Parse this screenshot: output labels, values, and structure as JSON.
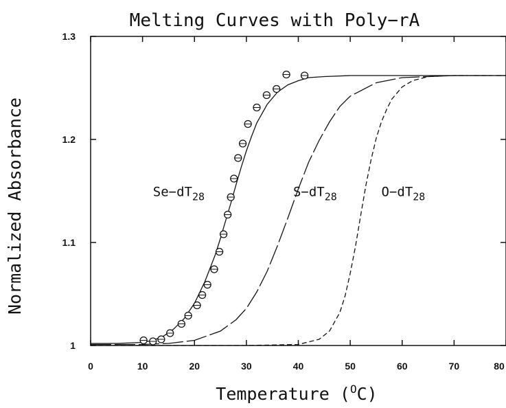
{
  "chart_data": {
    "type": "line",
    "title": "Melting Curves with Poly−rA",
    "xlabel": "Temperature",
    "xlabel_unit_sup": "O",
    "xlabel_unit_after": "C",
    "ylabel": "Normalized Absorbance",
    "xlim": [
      0,
      80
    ],
    "ylim": [
      1.0,
      1.3
    ],
    "x_ticks": [
      0,
      10,
      20,
      30,
      40,
      50,
      60,
      70,
      80
    ],
    "y_ticks": [
      {
        "value": 1.0,
        "label": "1"
      },
      {
        "value": 1.1,
        "label": "1.1"
      },
      {
        "value": 1.2,
        "label": "1.2"
      },
      {
        "value": 1.3,
        "label": "1.3"
      }
    ],
    "grid": false,
    "series": [
      {
        "name_main": "Se−dT",
        "name_sub": "28",
        "style": "solid",
        "x": [
          0,
          5,
          10,
          12,
          14,
          16,
          18,
          20,
          22,
          24,
          25,
          26,
          27,
          28,
          29,
          30,
          31,
          32,
          34,
          36,
          38,
          40,
          42,
          45,
          50,
          60,
          70,
          80
        ],
        "y": [
          1.002,
          1.002,
          1.003,
          1.005,
          1.009,
          1.016,
          1.026,
          1.041,
          1.062,
          1.088,
          1.104,
          1.121,
          1.138,
          1.156,
          1.173,
          1.189,
          1.203,
          1.216,
          1.234,
          1.246,
          1.253,
          1.257,
          1.26,
          1.261,
          1.262,
          1.262,
          1.262,
          1.262
        ],
        "label_at": {
          "x": 12,
          "y": 1.145
        }
      },
      {
        "name_main": "S−dT",
        "name_sub": "28",
        "style": "dashed-long",
        "x": [
          0,
          10,
          15,
          20,
          25,
          28,
          30,
          32,
          34,
          36,
          38,
          40,
          42,
          44,
          46,
          48,
          50,
          55,
          60,
          65,
          70,
          80
        ],
        "y": [
          1.001,
          1.001,
          1.002,
          1.005,
          1.014,
          1.025,
          1.036,
          1.052,
          1.072,
          1.097,
          1.124,
          1.152,
          1.178,
          1.199,
          1.217,
          1.232,
          1.242,
          1.255,
          1.26,
          1.261,
          1.262,
          1.262
        ],
        "label_at": {
          "x": 39,
          "y": 1.145
        }
      },
      {
        "name_main": "O−dT",
        "name_sub": "28",
        "style": "dashed-short",
        "x": [
          0,
          10,
          20,
          30,
          40,
          44,
          46,
          48,
          49,
          50,
          51,
          52,
          53,
          54,
          55,
          56,
          57,
          58,
          60,
          62,
          65,
          70,
          80
        ],
        "y": [
          1.0,
          1.0,
          1.0,
          1.0,
          1.001,
          1.006,
          1.014,
          1.032,
          1.048,
          1.07,
          1.096,
          1.126,
          1.155,
          1.18,
          1.201,
          1.217,
          1.229,
          1.239,
          1.251,
          1.257,
          1.261,
          1.262,
          1.262
        ],
        "label_at": {
          "x": 56,
          "y": 1.145
        }
      }
    ],
    "data_points": {
      "series": "Se−dT28",
      "marker": "circle",
      "x": [
        10.2,
        12.0,
        13.6,
        15.3,
        17.5,
        18.8,
        20.5,
        21.5,
        22.5,
        23.8,
        24.8,
        25.6,
        26.4,
        27.0,
        27.6,
        28.4,
        29.3,
        30.3,
        32.0,
        33.9,
        35.8,
        37.7,
        41.2
      ],
      "y": [
        1.005,
        1.004,
        1.006,
        1.012,
        1.021,
        1.029,
        1.039,
        1.049,
        1.059,
        1.074,
        1.091,
        1.108,
        1.127,
        1.144,
        1.162,
        1.182,
        1.196,
        1.215,
        1.231,
        1.243,
        1.249,
        1.263,
        1.262
      ]
    }
  }
}
